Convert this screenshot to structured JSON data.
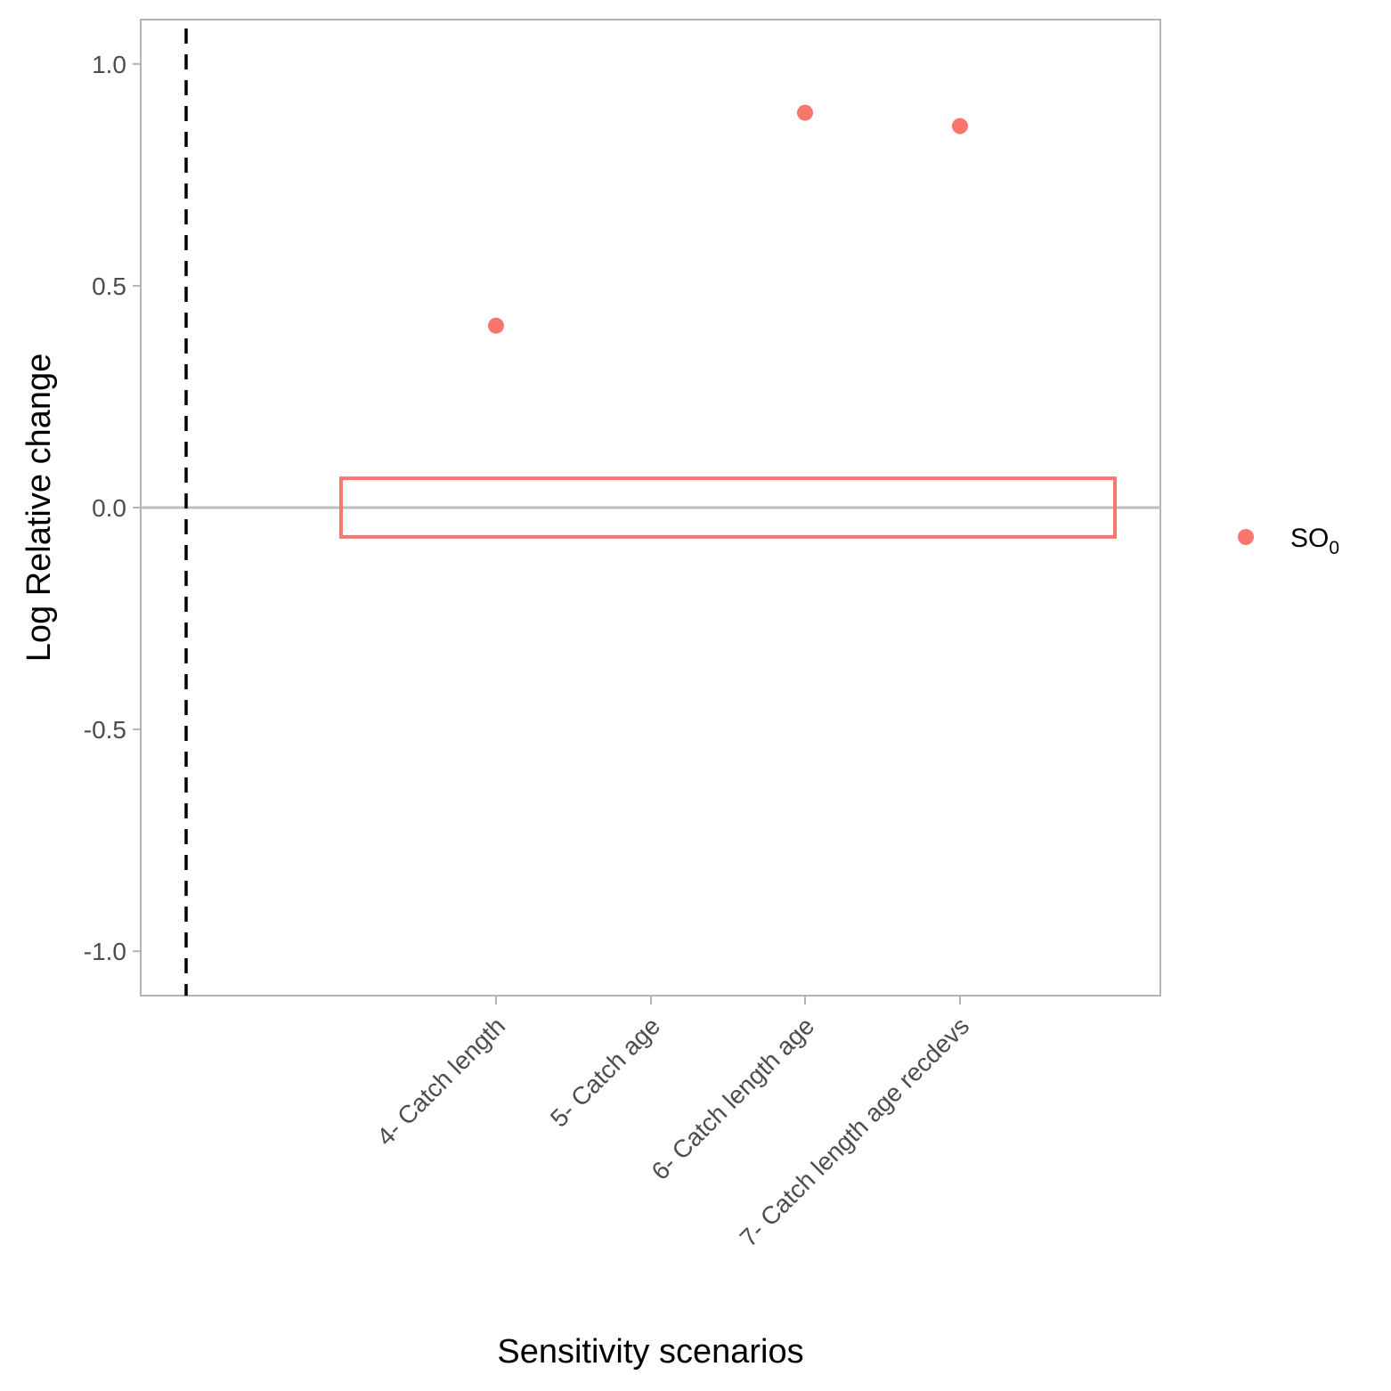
{
  "chart_data": {
    "type": "scatter",
    "xlabel": "Sensitivity scenarios",
    "ylabel": "Log Relative change",
    "categories": [
      "4- Catch length",
      "5- Catch age",
      "6- Catch length age",
      "7- Catch length age recdevs"
    ],
    "ylim": [
      -1.1,
      1.1
    ],
    "yticks": [
      1.0,
      0.5,
      0.0,
      -0.5,
      -1.0
    ],
    "ytick_labels": [
      "1.0",
      "0.5",
      "0.0",
      "-0.5",
      "-1.0"
    ],
    "series": [
      {
        "name": "SO0",
        "name_main": "SO",
        "name_sub": "0",
        "color": "#f8766d",
        "points": [
          {
            "category": "4- Catch length",
            "value": 0.41
          },
          {
            "category": "6- Catch length age",
            "value": 0.89
          },
          {
            "category": "7- Catch length age recdevs",
            "value": 0.86
          }
        ]
      }
    ],
    "reference_hline": {
      "y": 0.0,
      "color": "#bebebe"
    },
    "reference_vline": {
      "style": "dashed",
      "color": "#000000"
    },
    "band": {
      "ymin": -0.066,
      "ymax": 0.066,
      "color": "#f8766d"
    },
    "grid": false,
    "legend_position": "right"
  }
}
